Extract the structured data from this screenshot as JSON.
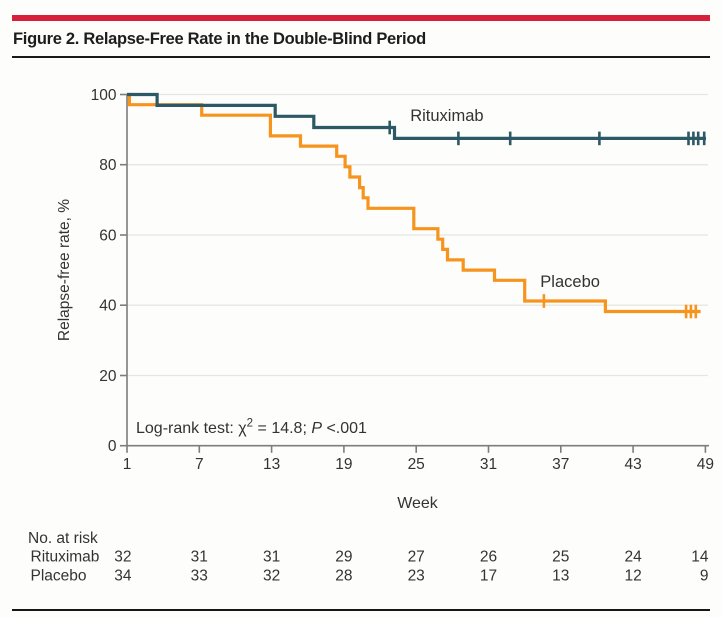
{
  "figure": {
    "title": "Figure 2. Relapse-Free Rate in the Double-Blind Period",
    "accent_color": "#D7213C"
  },
  "chart_data": {
    "type": "line",
    "subtype": "kaplan-meier-step",
    "title": "",
    "xlabel": "Week",
    "ylabel": "Relapse-free rate, %",
    "xlim": [
      1,
      49
    ],
    "ylim": [
      0,
      100
    ],
    "x_ticks": [
      1,
      7,
      13,
      19,
      25,
      31,
      37,
      43,
      49
    ],
    "y_ticks": [
      0,
      20,
      40,
      60,
      80,
      100
    ],
    "grid": "horizontal-only",
    "legend_position": "inline-curve-labels",
    "annotation": {
      "text": "Log-rank test: χ2 = 14.8; P <.001",
      "parts": [
        {
          "t": "Log-rank test: χ"
        },
        {
          "t": "2",
          "sup": true
        },
        {
          "t": " = 14.8; "
        },
        {
          "t": "P",
          "italic": true
        },
        {
          "t": " <.001"
        }
      ],
      "week": 1.75,
      "pct": 3.6
    },
    "series": [
      {
        "name": "Rituximab",
        "color": "#2D5966",
        "label_week": 24.5,
        "label_pct": 92.4,
        "steps": [
          [
            1,
            100
          ],
          [
            3.5,
            96.9
          ],
          [
            13.3,
            93.8
          ],
          [
            16.5,
            90.6
          ],
          [
            23.2,
            87.5
          ]
        ],
        "end_week": 49.05,
        "censor_marks": [
          [
            22.8,
            90.6
          ],
          [
            28.5,
            87.5
          ],
          [
            32.8,
            87.5
          ],
          [
            40.2,
            87.5
          ],
          [
            47.6,
            87.5
          ],
          [
            48.0,
            87.5
          ],
          [
            48.4,
            87.5
          ],
          [
            48.9,
            87.5
          ]
        ]
      },
      {
        "name": "Placebo",
        "color": "#F7941E",
        "label_week": 35.3,
        "label_pct": 45.2,
        "steps": [
          [
            1,
            100
          ],
          [
            1.2,
            97.1
          ],
          [
            7.2,
            94.1
          ],
          [
            12.9,
            88.2
          ],
          [
            15.4,
            85.3
          ],
          [
            18.4,
            82.4
          ],
          [
            19.1,
            79.4
          ],
          [
            19.5,
            76.5
          ],
          [
            20.3,
            73.5
          ],
          [
            20.6,
            70.6
          ],
          [
            21.0,
            67.6
          ],
          [
            24.8,
            61.8
          ],
          [
            26.8,
            58.8
          ],
          [
            27.2,
            55.9
          ],
          [
            27.6,
            52.9
          ],
          [
            28.9,
            50.0
          ],
          [
            31.5,
            47.1
          ],
          [
            34.0,
            41.2
          ],
          [
            40.7,
            38.2
          ]
        ],
        "end_week": 48.6,
        "censor_marks": [
          [
            35.6,
            41.2
          ],
          [
            47.4,
            38.2
          ],
          [
            47.8,
            38.2
          ],
          [
            48.2,
            38.2
          ]
        ]
      }
    ],
    "at_risk": {
      "label": "No. at risk",
      "weeks": [
        1,
        7,
        13,
        19,
        25,
        31,
        37,
        43,
        49
      ],
      "rows": [
        {
          "name": "Rituximab",
          "values": [
            "32",
            "31",
            "31",
            "29",
            "27",
            "26",
            "25",
            "24",
            "14"
          ]
        },
        {
          "name": "Placebo",
          "values": [
            "34",
            "33",
            "32",
            "28",
            "23",
            "17",
            "13",
            "12",
            "9"
          ]
        }
      ]
    }
  }
}
